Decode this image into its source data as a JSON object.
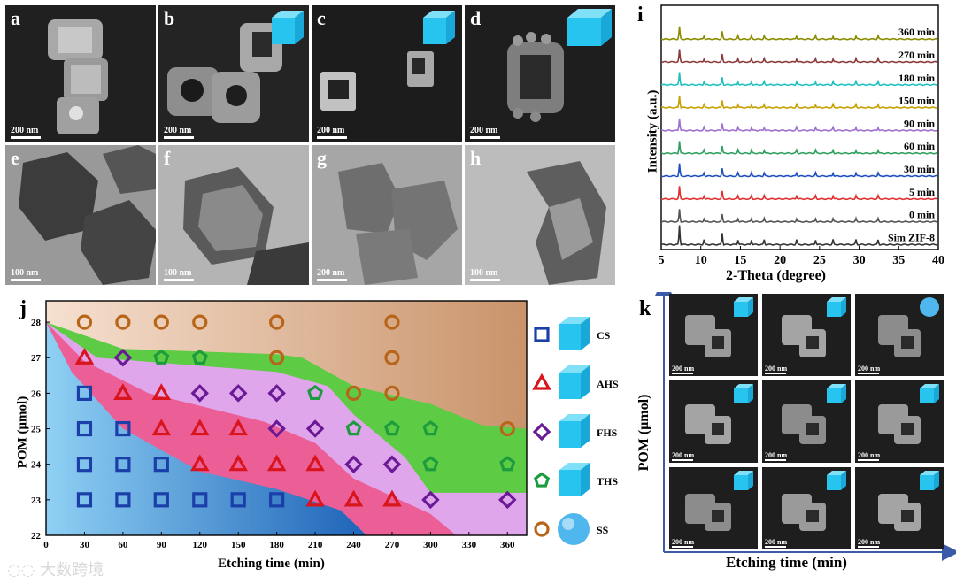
{
  "panels_top": [
    {
      "letter": "a",
      "scale": "200 nm",
      "type": "sem",
      "cube": false
    },
    {
      "letter": "b",
      "scale": "200 nm",
      "type": "sem",
      "cube": true
    },
    {
      "letter": "c",
      "scale": "200 nm",
      "type": "sem",
      "cube": true
    },
    {
      "letter": "d",
      "scale": "200 nm",
      "type": "sem",
      "cube": true
    },
    {
      "letter": "e",
      "scale": "100 nm",
      "type": "tem",
      "cube": false
    },
    {
      "letter": "f",
      "scale": "100 nm",
      "type": "tem",
      "cube": false
    },
    {
      "letter": "g",
      "scale": "200 nm",
      "type": "tem",
      "cube": false
    },
    {
      "letter": "h",
      "scale": "100 nm",
      "type": "tem",
      "cube": false
    }
  ],
  "xrd": {
    "letter": "i",
    "ylabel": "Intensity (a.u.)",
    "xlabel": "2-Theta (degree)",
    "xticks": [
      "5",
      "10",
      "15",
      "20",
      "25",
      "30",
      "35",
      "40"
    ],
    "traces": [
      {
        "label": "360 min",
        "color": "#8b8b00"
      },
      {
        "label": "270 min",
        "color": "#8b3a3a"
      },
      {
        "label": "180 min",
        "color": "#20c0c0"
      },
      {
        "label": "150 min",
        "color": "#c8a000"
      },
      {
        "label": "90 min",
        "color": "#a070d0"
      },
      {
        "label": "60 min",
        "color": "#30a060"
      },
      {
        "label": "30 min",
        "color": "#2050c0"
      },
      {
        "label": "5 min",
        "color": "#e03030"
      },
      {
        "label": "0 min",
        "color": "#555555"
      },
      {
        "label": "Sim ZIF-8",
        "color": "#333333"
      }
    ]
  },
  "chart_data": {
    "type": "scatter",
    "title": "",
    "panel_letter": "j",
    "xlabel": "Etching time (min)",
    "ylabel": "POM (μmol)",
    "xlim": [
      0,
      375
    ],
    "ylim": [
      22,
      28.6
    ],
    "xticks": [
      0,
      30,
      60,
      90,
      120,
      150,
      180,
      210,
      240,
      270,
      300,
      330,
      360
    ],
    "yticks": [
      22,
      23,
      24,
      25,
      26,
      27,
      28
    ],
    "legend": [
      {
        "code": "CS",
        "color": "#1a3fa8",
        "marker": "square"
      },
      {
        "code": "AHS",
        "color": "#d8141c",
        "marker": "triangle"
      },
      {
        "code": "FHS",
        "color": "#6b1a96",
        "marker": "diamond"
      },
      {
        "code": "THS",
        "color": "#1c9c3c",
        "marker": "pentagon"
      },
      {
        "code": "SS",
        "color": "#b8651a",
        "marker": "circle"
      }
    ],
    "points": [
      {
        "x": 30,
        "y": 23,
        "m": "CS"
      },
      {
        "x": 60,
        "y": 23,
        "m": "CS"
      },
      {
        "x": 90,
        "y": 23,
        "m": "CS"
      },
      {
        "x": 120,
        "y": 23,
        "m": "CS"
      },
      {
        "x": 150,
        "y": 23,
        "m": "CS"
      },
      {
        "x": 180,
        "y": 23,
        "m": "CS"
      },
      {
        "x": 210,
        "y": 23,
        "m": "AHS"
      },
      {
        "x": 240,
        "y": 23,
        "m": "AHS"
      },
      {
        "x": 270,
        "y": 23,
        "m": "AHS"
      },
      {
        "x": 300,
        "y": 23,
        "m": "FHS"
      },
      {
        "x": 360,
        "y": 23,
        "m": "FHS"
      },
      {
        "x": 30,
        "y": 24,
        "m": "CS"
      },
      {
        "x": 60,
        "y": 24,
        "m": "CS"
      },
      {
        "x": 90,
        "y": 24,
        "m": "CS"
      },
      {
        "x": 120,
        "y": 24,
        "m": "AHS"
      },
      {
        "x": 150,
        "y": 24,
        "m": "AHS"
      },
      {
        "x": 180,
        "y": 24,
        "m": "AHS"
      },
      {
        "x": 210,
        "y": 24,
        "m": "AHS"
      },
      {
        "x": 240,
        "y": 24,
        "m": "FHS"
      },
      {
        "x": 270,
        "y": 24,
        "m": "FHS"
      },
      {
        "x": 300,
        "y": 24,
        "m": "THS"
      },
      {
        "x": 360,
        "y": 24,
        "m": "THS"
      },
      {
        "x": 30,
        "y": 25,
        "m": "CS"
      },
      {
        "x": 60,
        "y": 25,
        "m": "CS"
      },
      {
        "x": 90,
        "y": 25,
        "m": "AHS"
      },
      {
        "x": 120,
        "y": 25,
        "m": "AHS"
      },
      {
        "x": 150,
        "y": 25,
        "m": "AHS"
      },
      {
        "x": 180,
        "y": 25,
        "m": "FHS"
      },
      {
        "x": 210,
        "y": 25,
        "m": "FHS"
      },
      {
        "x": 240,
        "y": 25,
        "m": "THS"
      },
      {
        "x": 270,
        "y": 25,
        "m": "THS"
      },
      {
        "x": 300,
        "y": 25,
        "m": "THS"
      },
      {
        "x": 360,
        "y": 25,
        "m": "SS"
      },
      {
        "x": 30,
        "y": 26,
        "m": "CS"
      },
      {
        "x": 60,
        "y": 26,
        "m": "AHS"
      },
      {
        "x": 90,
        "y": 26,
        "m": "AHS"
      },
      {
        "x": 120,
        "y": 26,
        "m": "FHS"
      },
      {
        "x": 150,
        "y": 26,
        "m": "FHS"
      },
      {
        "x": 180,
        "y": 26,
        "m": "FHS"
      },
      {
        "x": 210,
        "y": 26,
        "m": "THS"
      },
      {
        "x": 240,
        "y": 26,
        "m": "SS"
      },
      {
        "x": 270,
        "y": 26,
        "m": "SS"
      },
      {
        "x": 30,
        "y": 27,
        "m": "AHS"
      },
      {
        "x": 60,
        "y": 27,
        "m": "FHS"
      },
      {
        "x": 90,
        "y": 27,
        "m": "THS"
      },
      {
        "x": 120,
        "y": 27,
        "m": "THS"
      },
      {
        "x": 180,
        "y": 27,
        "m": "SS"
      },
      {
        "x": 270,
        "y": 27,
        "m": "SS"
      },
      {
        "x": 30,
        "y": 28,
        "m": "SS"
      },
      {
        "x": 60,
        "y": 28,
        "m": "SS"
      },
      {
        "x": 90,
        "y": 28,
        "m": "SS"
      },
      {
        "x": 120,
        "y": 28,
        "m": "SS"
      },
      {
        "x": 180,
        "y": 28,
        "m": "SS"
      },
      {
        "x": 270,
        "y": 28,
        "m": "SS"
      }
    ]
  },
  "panel_k": {
    "letter": "k",
    "ylabel": "POM (μmol)",
    "xlabel": "Etching time (min)",
    "scale": "200 nm"
  },
  "watermark": "大数跨境"
}
